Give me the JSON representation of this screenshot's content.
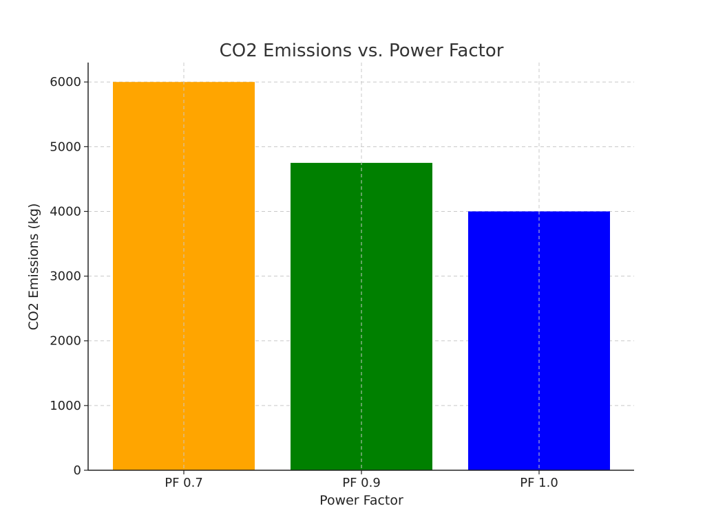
{
  "chart_data": {
    "type": "bar",
    "title": "CO2 Emissions vs. Power Factor",
    "xlabel": "Power Factor",
    "ylabel": "CO2 Emissions (kg)",
    "categories": [
      "PF 0.7",
      "PF 0.9",
      "PF 1.0"
    ],
    "values": [
      6000,
      4750,
      4000
    ],
    "colors": [
      "#FFA500",
      "#008000",
      "#0000FF"
    ],
    "ylim": [
      0,
      6300
    ],
    "yticks": [
      0,
      1000,
      2000,
      3000,
      4000,
      5000,
      6000
    ],
    "grid": true,
    "legend": "none"
  }
}
